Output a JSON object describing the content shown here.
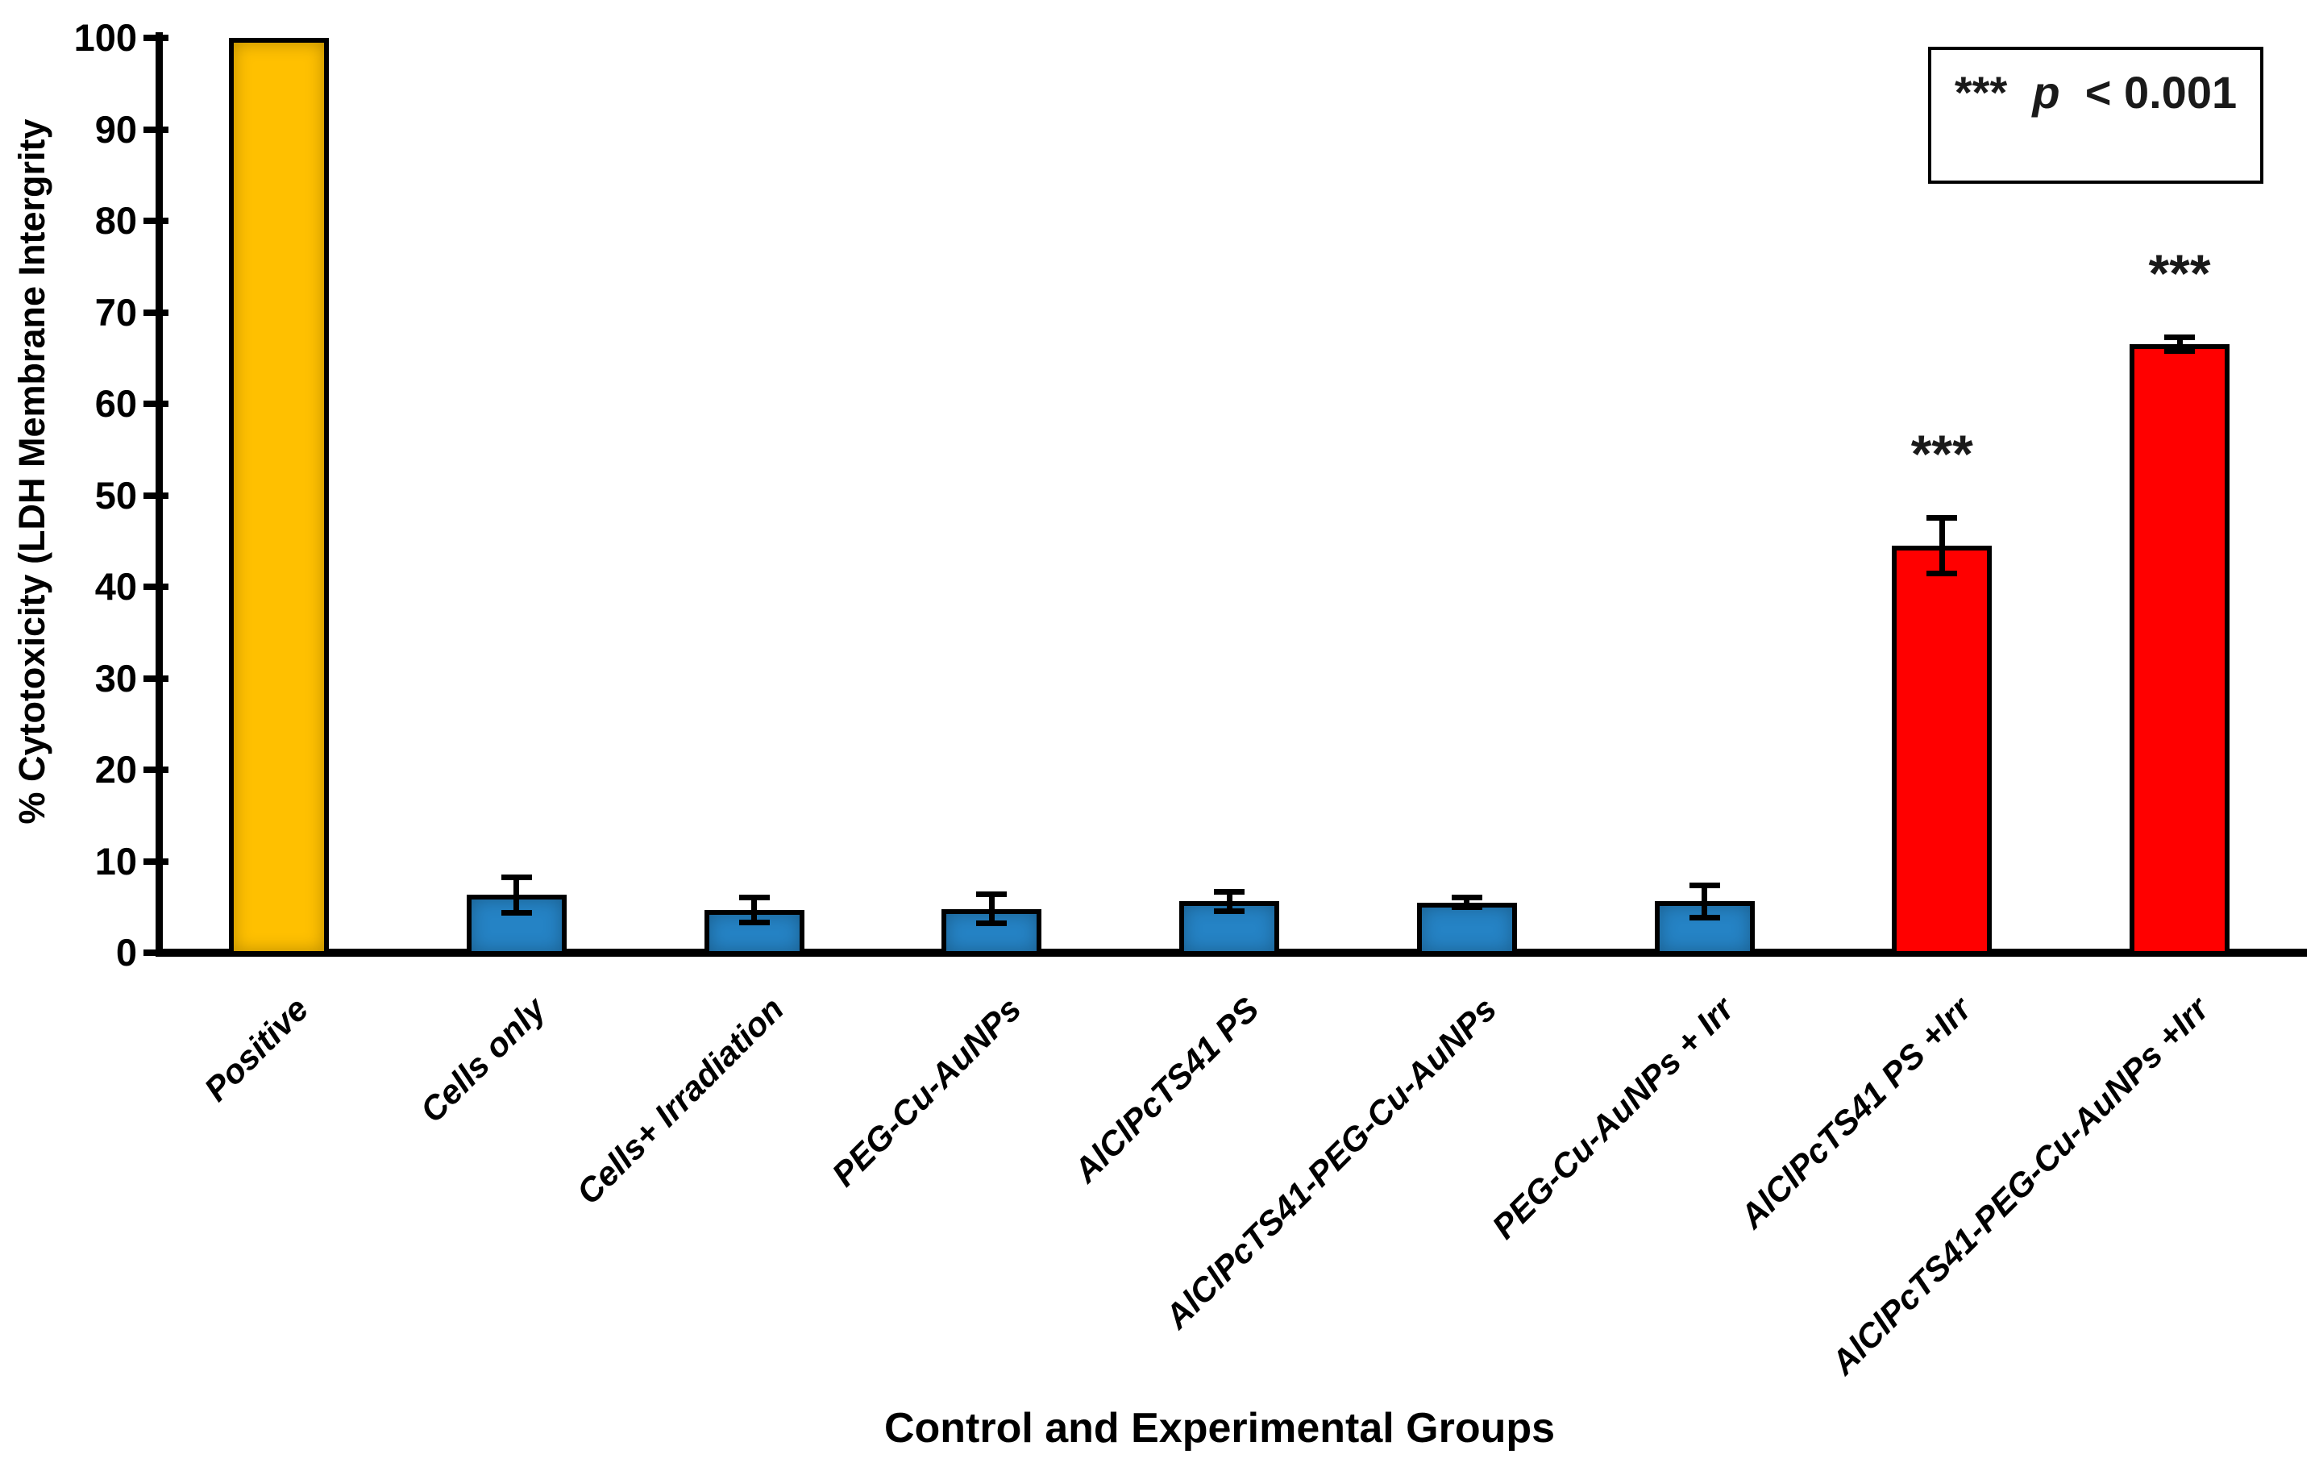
{
  "figure": {
    "y_axis_title": "% Cytotoxicity  (LDH Membrane Intergrity",
    "x_axis_title": "Control and Experimental Groups",
    "legend": {
      "stars": "***",
      "p": "p",
      "rest": "< 0.001"
    },
    "annotation": "*** p < 0.001"
  },
  "chart_data": {
    "type": "bar",
    "title": "",
    "xlabel": "Control and Experimental Groups",
    "ylabel": "% Cytotoxicity  (LDH Membrane Intergrity",
    "ylim": [
      0,
      100
    ],
    "ytick_step": 10,
    "yticks": [
      0,
      10,
      20,
      30,
      40,
      50,
      60,
      70,
      80,
      90,
      100
    ],
    "grid": false,
    "legend_position": "top-right",
    "legend_text": "*** p < 0.001",
    "categories": [
      "Positive",
      "Cells only",
      "Cells+ Irradiation",
      "PEG-Cu-AuNPs",
      "AlClPcTS41 PS",
      "AlClPcTS41-PEG-Cu-AuNPs",
      "PEG-Cu-AuNPs + Irr",
      "AlClPcTS41 PS +Irr",
      "AlClPcTS41-PEG-Cu-AuNPs +Irr"
    ],
    "slugs": [
      "positive",
      "cells-only",
      "cells-irradiation",
      "peg-cu-aunps",
      "alclpcts41-ps",
      "alclpcts41-peg-cu-aunps",
      "peg-cu-aunps-irr",
      "alclpcts41-ps-irr",
      "alclpcts41-peg-cu-aunps-irr"
    ],
    "values": [
      100,
      6.3,
      4.7,
      4.8,
      5.6,
      5.5,
      5.6,
      44.5,
      66.5
    ],
    "errors": [
      0,
      2.0,
      1.4,
      1.6,
      1.1,
      0.6,
      1.8,
      3.1,
      0.8
    ],
    "significance": [
      "",
      "",
      "",
      "",
      "",
      "",
      "",
      "***",
      "***"
    ],
    "bar_colors": [
      "#FFC000",
      "#2583C5",
      "#2583C5",
      "#2583C5",
      "#2583C5",
      "#2583C5",
      "#2583C5",
      "#FF0000",
      "#FF0000"
    ],
    "colors": {
      "positive_control": "#FFC000",
      "untreated_controls": "#2583C5",
      "irradiated_treatment": "#FF0000",
      "axis": "#000000",
      "background": "#FFFFFF"
    }
  }
}
